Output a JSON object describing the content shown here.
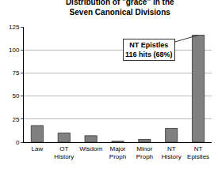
{
  "chart_data": {
    "type": "bar",
    "title": "Distribution of \"grace\" in the\nSeven Canonical Divisions",
    "categories": [
      "Law",
      "OT History",
      "Wisdom",
      "Major Proph",
      "Minor Proph",
      "NT History",
      "NT Epistles"
    ],
    "values": [
      18,
      10,
      7,
      1,
      3,
      15,
      116
    ],
    "color": "#808080",
    "ylim": [
      0,
      125
    ],
    "yticks": [
      0,
      25,
      50,
      75,
      100,
      125
    ],
    "grid": true,
    "annotations": [
      "NT Epistles\n116 hits (68%)"
    ]
  }
}
